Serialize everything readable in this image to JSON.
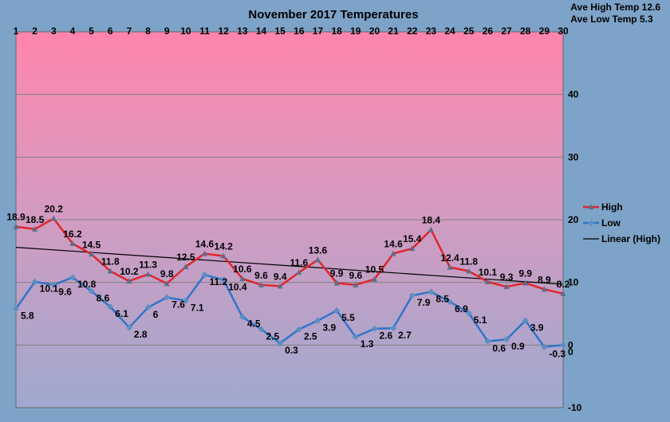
{
  "stats": {
    "ave_high": "Ave High Temp 12.6",
    "ave_low": "Ave Low Temp 5.3"
  },
  "chart_data": {
    "type": "line",
    "title": "November 2017 Temperatures",
    "xlabel": "",
    "ylabel": "",
    "categories": [
      "1",
      "2",
      "3",
      "4",
      "5",
      "6",
      "7",
      "8",
      "9",
      "10",
      "11",
      "12",
      "13",
      "14",
      "15",
      "16",
      "17",
      "18",
      "19",
      "20",
      "21",
      "22",
      "23",
      "24",
      "25",
      "26",
      "27",
      "28",
      "29",
      "30"
    ],
    "ylim": [
      -10,
      50
    ],
    "yticks": [
      -10,
      0,
      10,
      20,
      30,
      40
    ],
    "ytick_labels": [
      "-10",
      "0",
      "10",
      "20",
      "30",
      "40"
    ],
    "grid": true,
    "legend_position": "right",
    "series": [
      {
        "name": "High",
        "color": "#e0262c",
        "values": [
          18.9,
          18.5,
          20.2,
          16.2,
          14.5,
          11.8,
          10.2,
          11.3,
          9.8,
          12.5,
          14.6,
          14.2,
          10.6,
          9.6,
          9.4,
          11.6,
          13.6,
          9.9,
          9.6,
          10.5,
          14.6,
          15.4,
          18.4,
          12.4,
          11.8,
          10.1,
          9.3,
          9.9,
          8.9,
          8.2
        ],
        "labels": [
          "18.9",
          "18.5",
          "20.2",
          "16.2",
          "14.5",
          "11.8",
          "10.2",
          "11.3",
          "9.8",
          "12.5",
          "14.6",
          "14.2",
          "10.6",
          "9.6",
          "9.4",
          "11.6",
          "13.6",
          "9.9",
          "9.6",
          "10.5",
          "14.6",
          "15.4",
          "18.4",
          "12.4",
          "11.8",
          "10.1",
          "9.3",
          "9.9",
          "8.9",
          "8.2"
        ]
      },
      {
        "name": "Low",
        "color": "#2e75c9",
        "values": [
          5.8,
          10.1,
          9.6,
          10.8,
          8.6,
          6.1,
          2.8,
          6,
          7.6,
          7.1,
          11.2,
          10.4,
          4.5,
          2.5,
          0.3,
          2.5,
          3.9,
          5.5,
          1.3,
          2.6,
          2.7,
          7.9,
          8.5,
          6.9,
          5.1,
          0.6,
          0.9,
          3.9,
          -0.3,
          0
        ],
        "labels": [
          "5.8",
          "10.1",
          "9.6",
          "10.8",
          "8.6",
          "6.1",
          "2.8",
          "6",
          "7.6",
          "7.1",
          "11.2",
          "10.4",
          "4.5",
          "2.5",
          "0.3",
          "2.5",
          "3.9",
          "5.5",
          "1.3",
          "2.6",
          "2.7",
          "7.9",
          "8.5",
          "6.9",
          "5.1",
          "0.6",
          "0.9",
          "3.9",
          "-0.3",
          "0"
        ]
      },
      {
        "name": "Linear (High)",
        "color": "#000000",
        "type": "trendline",
        "start": 15.6,
        "end": 9.7
      }
    ]
  }
}
